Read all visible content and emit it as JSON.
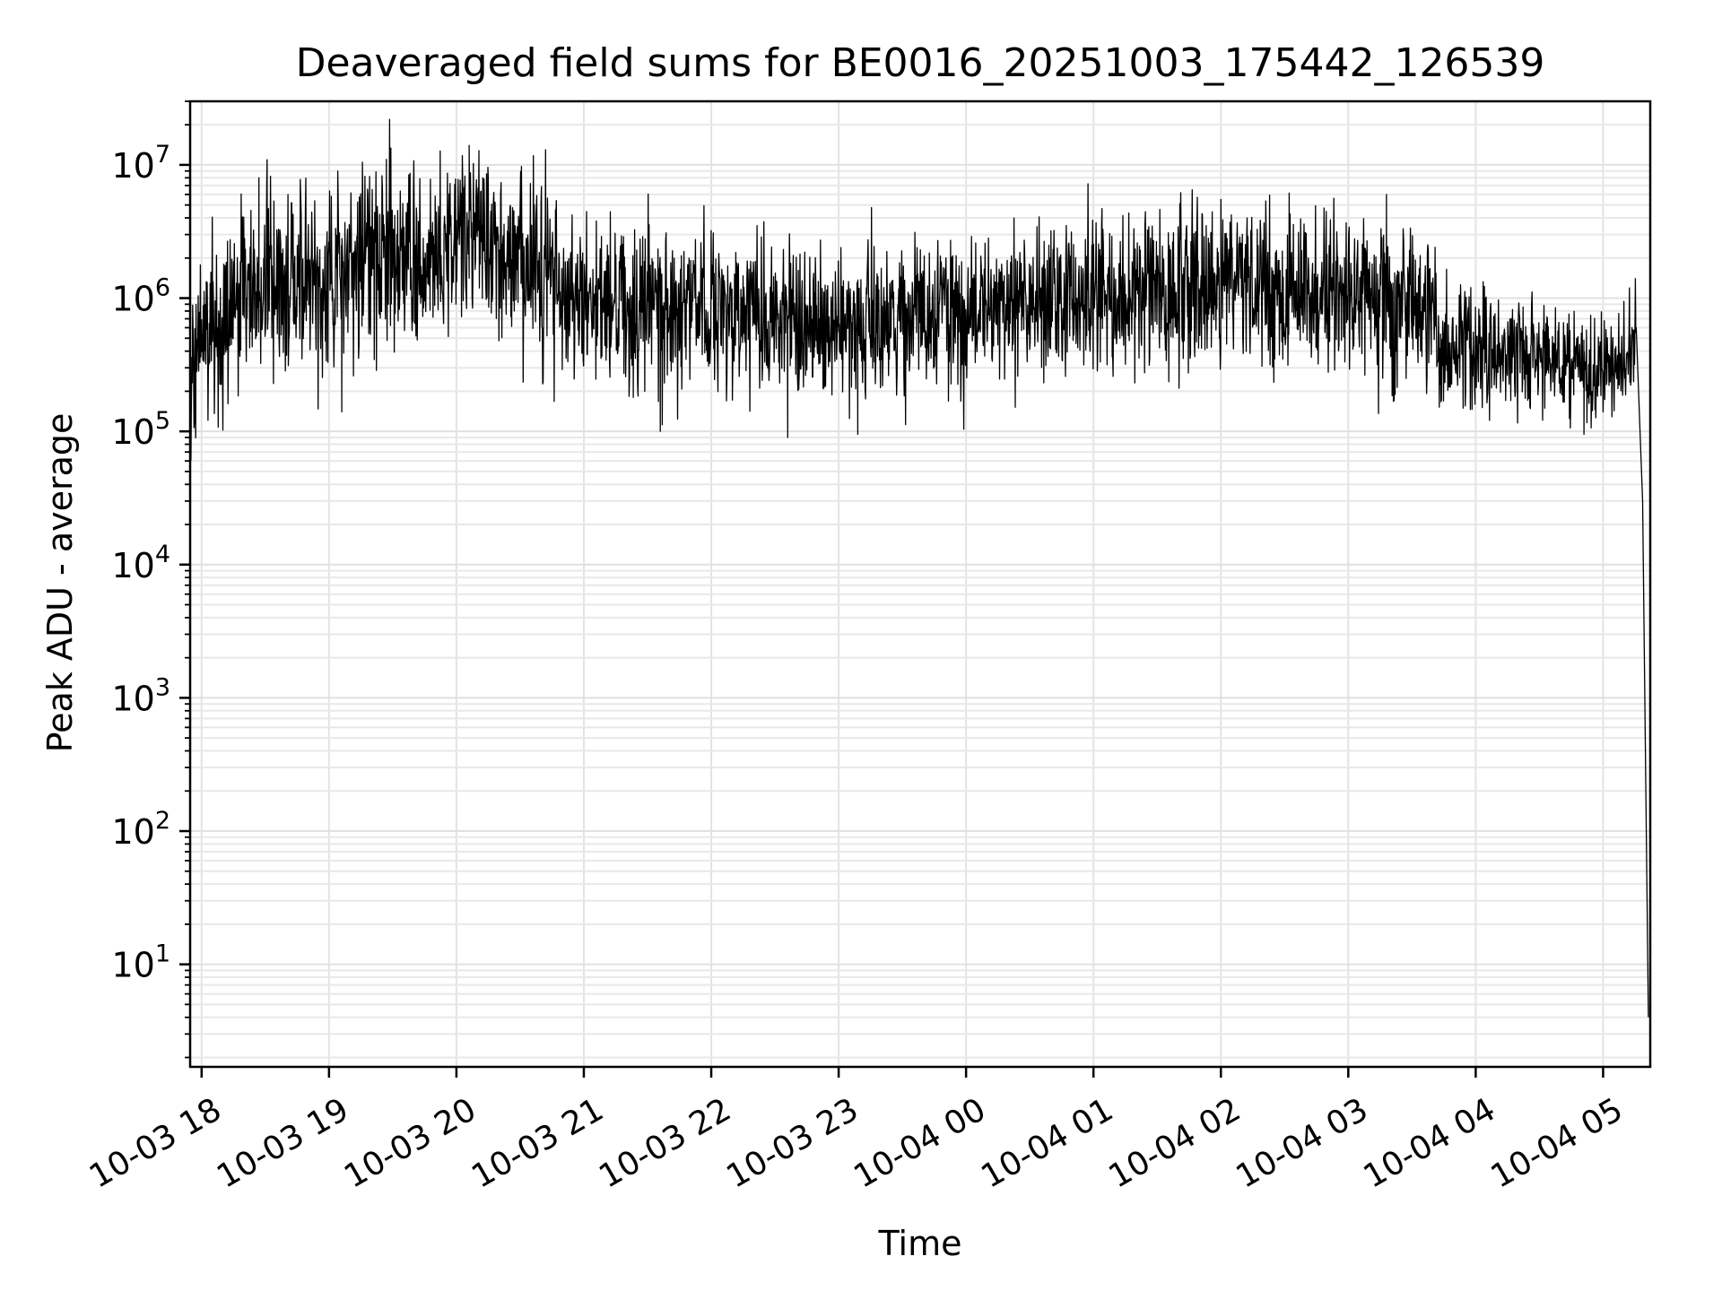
{
  "chart_data": {
    "type": "line",
    "title": "Deaveraged field sums for BE0016_20251003_175442_126539",
    "xlabel": "Time",
    "ylabel": "Peak ADU - average",
    "yscale": "log",
    "ylim": [
      1.7,
      30000000
    ],
    "xlim_hours": [
      -0.09,
      11.37
    ],
    "grid": true,
    "line_color": "#000000",
    "x_ticks": [
      {
        "label": "10-03 18",
        "hour": 0
      },
      {
        "label": "10-03 19",
        "hour": 1
      },
      {
        "label": "10-03 20",
        "hour": 2
      },
      {
        "label": "10-03 21",
        "hour": 3
      },
      {
        "label": "10-03 22",
        "hour": 4
      },
      {
        "label": "10-03 23",
        "hour": 5
      },
      {
        "label": "10-04 00",
        "hour": 6
      },
      {
        "label": "10-04 01",
        "hour": 7
      },
      {
        "label": "10-04 02",
        "hour": 8
      },
      {
        "label": "10-04 03",
        "hour": 9
      },
      {
        "label": "10-04 04",
        "hour": 10
      },
      {
        "label": "10-04 05",
        "hour": 11
      }
    ],
    "y_ticks": [
      {
        "base": "10",
        "exp": "1",
        "value": 10
      },
      {
        "base": "10",
        "exp": "2",
        "value": 100
      },
      {
        "base": "10",
        "exp": "3",
        "value": 1000
      },
      {
        "base": "10",
        "exp": "4",
        "value": 10000
      },
      {
        "base": "10",
        "exp": "5",
        "value": 100000
      },
      {
        "base": "10",
        "exp": "6",
        "value": 1000000
      },
      {
        "base": "10",
        "exp": "7",
        "value": 10000000
      }
    ],
    "series": [
      {
        "name": "field sums",
        "note": "dense noisy trace; envelope (hour, log10 center, log10 spread) plus sampled points",
        "envelope": [
          [
            -0.09,
            5.55,
            0.35
          ],
          [
            0.3,
            6.0,
            0.38
          ],
          [
            0.6,
            6.2,
            0.35
          ],
          [
            1.0,
            6.15,
            0.35
          ],
          [
            1.4,
            6.35,
            0.35
          ],
          [
            1.8,
            6.3,
            0.35
          ],
          [
            2.1,
            6.5,
            0.35
          ],
          [
            2.6,
            6.2,
            0.35
          ],
          [
            3.0,
            6.0,
            0.33
          ],
          [
            3.5,
            5.9,
            0.3
          ],
          [
            4.0,
            5.9,
            0.3
          ],
          [
            4.6,
            5.85,
            0.3
          ],
          [
            5.5,
            5.8,
            0.28
          ],
          [
            6.3,
            5.95,
            0.28
          ],
          [
            7.0,
            6.0,
            0.3
          ],
          [
            8.0,
            6.1,
            0.3
          ],
          [
            8.8,
            6.05,
            0.3
          ],
          [
            9.65,
            5.95,
            0.3
          ],
          [
            9.7,
            5.65,
            0.25
          ],
          [
            10.3,
            5.6,
            0.22
          ],
          [
            11.0,
            5.5,
            0.2
          ],
          [
            11.22,
            5.6,
            0.22
          ],
          [
            11.26,
            5.9,
            0.2
          ]
        ],
        "endpoints": [
          {
            "hour": 11.29,
            "value": 100000
          },
          {
            "hour": 11.31,
            "value": 30000
          },
          {
            "hour": 11.355,
            "value": 4
          }
        ],
        "peaks": [
          {
            "hour": 0.45,
            "value": 8000000
          },
          {
            "hour": 1.45,
            "value": 11000000
          },
          {
            "hour": 2.1,
            "value": 14000000
          },
          {
            "hour": 2.7,
            "value": 13000000
          },
          {
            "hour": 8.0,
            "value": 5500000
          },
          {
            "hour": 9.3,
            "value": 6000000
          }
        ],
        "troughs": [
          {
            "hour": 1.1,
            "value": 140000
          },
          {
            "hour": 3.6,
            "value": 100000
          },
          {
            "hour": 4.6,
            "value": 90000
          },
          {
            "hour": 5.15,
            "value": 95000
          },
          {
            "hour": 10.85,
            "value": 95000
          }
        ]
      }
    ]
  }
}
